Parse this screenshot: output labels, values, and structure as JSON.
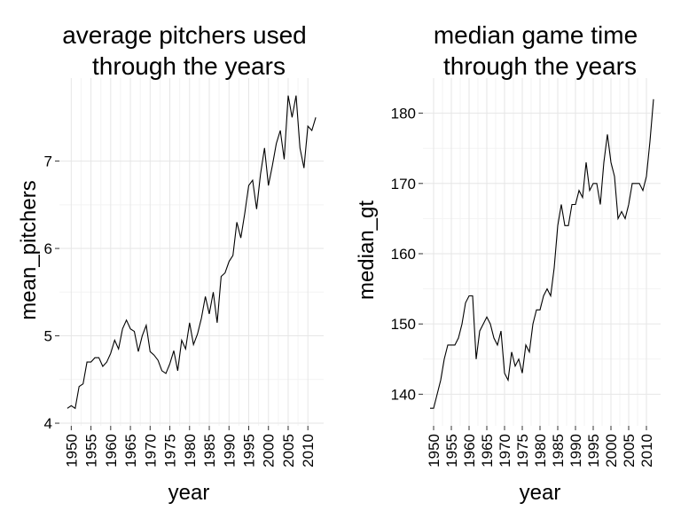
{
  "chart_data": [
    {
      "type": "line",
      "title_lines": [
        "average pitchers used",
        "through the years"
      ],
      "xlabel": "year",
      "ylabel": "mean_pitchers",
      "xlim": [
        1947,
        2014
      ],
      "ylim": [
        3.97,
        7.95
      ],
      "x_ticks": [
        1950,
        1955,
        1960,
        1965,
        1970,
        1975,
        1980,
        1985,
        1990,
        1995,
        2000,
        2005,
        2010
      ],
      "y_ticks": [
        4,
        5,
        6,
        7
      ],
      "grid": true,
      "series": [
        {
          "x": [
            1949,
            1950,
            1951,
            1952,
            1953,
            1954,
            1955,
            1956,
            1957,
            1958,
            1959,
            1960,
            1961,
            1962,
            1963,
            1964,
            1965,
            1966,
            1967,
            1968,
            1969,
            1970,
            1971,
            1972,
            1973,
            1974,
            1975,
            1976,
            1977,
            1978,
            1979,
            1980,
            1981,
            1982,
            1983,
            1984,
            1985,
            1986,
            1987,
            1988,
            1989,
            1990,
            1991,
            1992,
            1993,
            1994,
            1995,
            1996,
            1997,
            1998,
            1999,
            2000,
            2001,
            2002,
            2003,
            2004,
            2005,
            2006,
            2007,
            2008,
            2009,
            2010,
            2011,
            2012
          ],
          "y": [
            4.17,
            4.2,
            4.17,
            4.42,
            4.45,
            4.7,
            4.7,
            4.75,
            4.75,
            4.65,
            4.7,
            4.8,
            4.95,
            4.85,
            5.08,
            5.18,
            5.08,
            5.05,
            4.82,
            5.0,
            5.12,
            4.82,
            4.78,
            4.72,
            4.6,
            4.57,
            4.68,
            4.83,
            4.6,
            4.95,
            4.85,
            5.15,
            4.9,
            5.02,
            5.2,
            5.45,
            5.25,
            5.5,
            5.15,
            5.68,
            5.72,
            5.85,
            5.92,
            6.3,
            6.12,
            6.4,
            6.72,
            6.78,
            6.45,
            6.85,
            7.15,
            6.72,
            6.95,
            7.2,
            7.35,
            7.02,
            7.75,
            7.5,
            7.75,
            7.15,
            6.92,
            7.4,
            7.35,
            7.5
          ]
        }
      ]
    },
    {
      "type": "line",
      "title_lines": [
        "median game time",
        "through the years"
      ],
      "xlabel": "year",
      "ylabel": "median_gt",
      "xlim": [
        1947,
        2014
      ],
      "ylim": [
        135.5,
        185
      ],
      "x_ticks": [
        1950,
        1955,
        1960,
        1965,
        1970,
        1975,
        1980,
        1985,
        1990,
        1995,
        2000,
        2005,
        2010
      ],
      "y_ticks": [
        140,
        150,
        160,
        170,
        180
      ],
      "grid": true,
      "series": [
        {
          "x": [
            1949,
            1950,
            1951,
            1952,
            1953,
            1954,
            1955,
            1956,
            1957,
            1958,
            1959,
            1960,
            1961,
            1962,
            1963,
            1964,
            1965,
            1966,
            1967,
            1968,
            1969,
            1970,
            1971,
            1972,
            1973,
            1974,
            1975,
            1976,
            1977,
            1978,
            1979,
            1980,
            1981,
            1982,
            1983,
            1984,
            1985,
            1986,
            1987,
            1988,
            1989,
            1990,
            1991,
            1992,
            1993,
            1994,
            1995,
            1996,
            1997,
            1998,
            1999,
            2000,
            2001,
            2002,
            2003,
            2004,
            2005,
            2006,
            2007,
            2008,
            2009,
            2010,
            2011,
            2012
          ],
          "y": [
            138,
            138,
            140,
            142,
            145,
            147,
            147,
            147,
            148,
            150,
            153,
            154,
            154,
            145,
            149,
            150,
            151,
            150,
            148,
            147,
            149,
            143,
            142,
            146,
            144,
            145,
            143,
            147,
            146,
            150,
            152,
            152,
            154,
            155,
            154,
            158,
            164,
            167,
            164,
            164,
            167,
            167,
            169,
            168,
            173,
            169,
            170,
            170,
            167,
            173,
            177,
            173,
            171,
            165,
            166,
            165,
            167,
            170,
            170,
            170,
            169,
            171,
            176,
            182
          ]
        }
      ]
    }
  ]
}
